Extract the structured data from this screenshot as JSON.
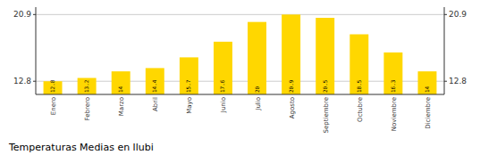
{
  "chart_data": {
    "type": "bar",
    "title": "Temperaturas Medias en llubi",
    "categories": [
      "Enero",
      "Febrero",
      "Marzo",
      "Abril",
      "Mayo",
      "Junio",
      "Julio",
      "Agosto",
      "Septiembre",
      "Octubre",
      "Noviembre",
      "Diciembre"
    ],
    "values": [
      12.8,
      13.2,
      14.0,
      14.4,
      15.7,
      17.6,
      20.0,
      20.9,
      20.5,
      18.5,
      16.3,
      14.0
    ],
    "color": "#FFD700",
    "ylim": [
      11.2,
      21.8
    ],
    "yticks": [
      12.8,
      20.9
    ],
    "grid": true,
    "data_labels": true
  }
}
